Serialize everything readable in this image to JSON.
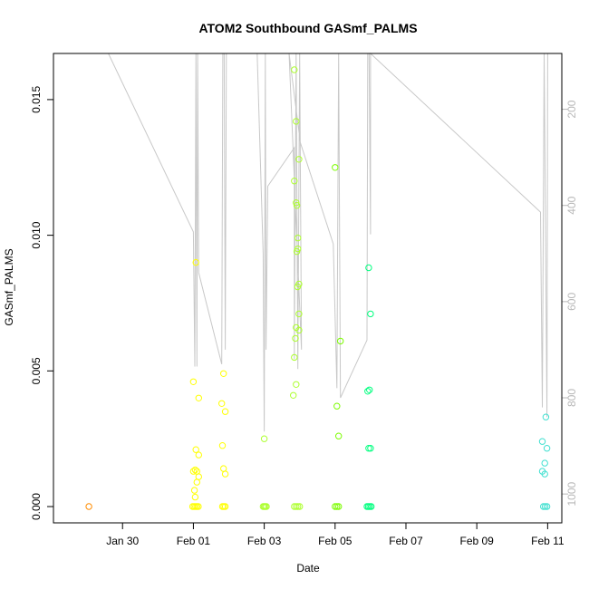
{
  "chart_data": {
    "type": "scatter",
    "title": "ATOM2 Southbound GASmf_PALMS",
    "xlabel": "Date",
    "ylabel": "GASmf_PALMS",
    "x_ticks": [
      {
        "value": 1.0,
        "label": "Jan 30"
      },
      {
        "value": 3.0,
        "label": "Feb 01"
      },
      {
        "value": 5.0,
        "label": "Feb 03"
      },
      {
        "value": 7.0,
        "label": "Feb 05"
      },
      {
        "value": 9.0,
        "label": "Feb 07"
      },
      {
        "value": 11.0,
        "label": "Feb 09"
      },
      {
        "value": 13.0,
        "label": "Feb 11"
      }
    ],
    "y_ticks": [
      {
        "value": 0.0,
        "label": "0.000"
      },
      {
        "value": 0.005,
        "label": "0.005"
      },
      {
        "value": 0.01,
        "label": "0.010"
      },
      {
        "value": 0.015,
        "label": "0.015"
      }
    ],
    "y2_ticks": [
      {
        "value": 200,
        "label": "200"
      },
      {
        "value": 400,
        "label": "400"
      },
      {
        "value": 600,
        "label": "600"
      },
      {
        "value": 800,
        "label": "800"
      },
      {
        "value": 1000,
        "label": "1000"
      }
    ],
    "xlim": [
      -0.95,
      13.4
    ],
    "ylim": [
      -0.0006,
      0.0167
    ],
    "y2lim": [
      1060,
      84
    ],
    "y2_reversed": true,
    "grid": false,
    "point_colors": [
      "#ff8c00",
      "#ffff00",
      "#adff2f",
      "#7cfc00",
      "#00ff7f",
      "#40e0d0"
    ],
    "line_color": "#c8c8c8",
    "points": [
      {
        "x": 0.05,
        "y": 0.0,
        "c": 0
      },
      {
        "x": 3.0,
        "y": 0.0046,
        "c": 1
      },
      {
        "x": 3.0,
        "y": 0.0013,
        "c": 1
      },
      {
        "x": 3.05,
        "y": 0.00135,
        "c": 1
      },
      {
        "x": 3.03,
        "y": 0.0006,
        "c": 1
      },
      {
        "x": 3.07,
        "y": 0.0021,
        "c": 1
      },
      {
        "x": 3.1,
        "y": 0.0009,
        "c": 1
      },
      {
        "x": 3.1,
        "y": 0.0013,
        "c": 1
      },
      {
        "x": 3.15,
        "y": 0.0011,
        "c": 1
      },
      {
        "x": 3.15,
        "y": 0.0019,
        "c": 1
      },
      {
        "x": 3.05,
        "y": 0.00035,
        "c": 1
      },
      {
        "x": 3.15,
        "y": 0.004,
        "c": 1
      },
      {
        "x": 3.07,
        "y": 0.009,
        "c": 1
      },
      {
        "x": 2.98,
        "y": 0.0,
        "c": 1
      },
      {
        "x": 3.02,
        "y": 0.0,
        "c": 1
      },
      {
        "x": 3.06,
        "y": 0.0,
        "c": 1
      },
      {
        "x": 3.1,
        "y": 0.0,
        "c": 1
      },
      {
        "x": 3.14,
        "y": 0.0,
        "c": 1
      },
      {
        "x": 3.85,
        "y": 0.0049,
        "c": 1
      },
      {
        "x": 3.8,
        "y": 0.0038,
        "c": 1
      },
      {
        "x": 3.9,
        "y": 0.0035,
        "c": 1
      },
      {
        "x": 3.82,
        "y": 0.00225,
        "c": 1
      },
      {
        "x": 3.85,
        "y": 0.0014,
        "c": 1
      },
      {
        "x": 3.9,
        "y": 0.0012,
        "c": 1
      },
      {
        "x": 3.82,
        "y": 0.0,
        "c": 1
      },
      {
        "x": 3.86,
        "y": 0.0,
        "c": 1
      },
      {
        "x": 3.9,
        "y": 0.0,
        "c": 1
      },
      {
        "x": 5.0,
        "y": 0.0025,
        "c": 2
      },
      {
        "x": 4.97,
        "y": 0.0,
        "c": 2
      },
      {
        "x": 5.0,
        "y": 0.0,
        "c": 2
      },
      {
        "x": 5.03,
        "y": 0.0,
        "c": 2
      },
      {
        "x": 5.06,
        "y": 0.0,
        "c": 2
      },
      {
        "x": 5.85,
        "y": 0.0161,
        "c": 2
      },
      {
        "x": 5.9,
        "y": 0.0142,
        "c": 2
      },
      {
        "x": 5.98,
        "y": 0.0128,
        "c": 2
      },
      {
        "x": 5.85,
        "y": 0.012,
        "c": 2
      },
      {
        "x": 5.9,
        "y": 0.0112,
        "c": 2
      },
      {
        "x": 5.92,
        "y": 0.0111,
        "c": 2
      },
      {
        "x": 5.95,
        "y": 0.0099,
        "c": 2
      },
      {
        "x": 5.92,
        "y": 0.0094,
        "c": 2
      },
      {
        "x": 5.95,
        "y": 0.0095,
        "c": 2
      },
      {
        "x": 5.98,
        "y": 0.0082,
        "c": 2
      },
      {
        "x": 5.94,
        "y": 0.0081,
        "c": 2
      },
      {
        "x": 5.98,
        "y": 0.0071,
        "c": 2
      },
      {
        "x": 5.9,
        "y": 0.0066,
        "c": 2
      },
      {
        "x": 5.98,
        "y": 0.0065,
        "c": 2
      },
      {
        "x": 5.88,
        "y": 0.0062,
        "c": 2
      },
      {
        "x": 5.85,
        "y": 0.0055,
        "c": 2
      },
      {
        "x": 5.9,
        "y": 0.0045,
        "c": 2
      },
      {
        "x": 5.82,
        "y": 0.0041,
        "c": 2
      },
      {
        "x": 5.85,
        "y": 0.0,
        "c": 2
      },
      {
        "x": 5.9,
        "y": 0.0,
        "c": 2
      },
      {
        "x": 5.95,
        "y": 0.0,
        "c": 2
      },
      {
        "x": 6.0,
        "y": 0.0,
        "c": 2
      },
      {
        "x": 7.0,
        "y": 0.0125,
        "c": 3
      },
      {
        "x": 7.05,
        "y": 0.0037,
        "c": 3
      },
      {
        "x": 7.1,
        "y": 0.0026,
        "c": 3
      },
      {
        "x": 7.15,
        "y": 0.0061,
        "c": 3
      },
      {
        "x": 7.0,
        "y": 0.0,
        "c": 3
      },
      {
        "x": 7.05,
        "y": 0.0,
        "c": 3
      },
      {
        "x": 7.1,
        "y": 0.0,
        "c": 3
      },
      {
        "x": 7.95,
        "y": 0.0088,
        "c": 4
      },
      {
        "x": 8.0,
        "y": 0.0071,
        "c": 4
      },
      {
        "x": 7.92,
        "y": 0.00425,
        "c": 4
      },
      {
        "x": 7.97,
        "y": 0.0043,
        "c": 4
      },
      {
        "x": 7.95,
        "y": 0.00215,
        "c": 4
      },
      {
        "x": 8.0,
        "y": 0.00215,
        "c": 4
      },
      {
        "x": 7.9,
        "y": 0.0,
        "c": 4
      },
      {
        "x": 7.94,
        "y": 0.0,
        "c": 4
      },
      {
        "x": 7.98,
        "y": 0.0,
        "c": 4
      },
      {
        "x": 8.02,
        "y": 0.0,
        "c": 4
      },
      {
        "x": 12.95,
        "y": 0.0033,
        "c": 5
      },
      {
        "x": 12.85,
        "y": 0.0024,
        "c": 5
      },
      {
        "x": 12.98,
        "y": 0.00215,
        "c": 5
      },
      {
        "x": 12.92,
        "y": 0.0016,
        "c": 5
      },
      {
        "x": 12.85,
        "y": 0.0013,
        "c": 5
      },
      {
        "x": 12.92,
        "y": 0.0012,
        "c": 5
      },
      {
        "x": 12.88,
        "y": 0.0,
        "c": 5
      },
      {
        "x": 12.93,
        "y": 0.0,
        "c": 5
      },
      {
        "x": 12.98,
        "y": 0.0,
        "c": 5
      }
    ],
    "pressure_line": [
      [
        0.6,
        84
      ],
      [
        3.0,
        455
      ],
      [
        3.04,
        735
      ],
      [
        3.07,
        84
      ],
      [
        3.1,
        735
      ],
      [
        3.12,
        84
      ],
      [
        3.15,
        540
      ],
      [
        3.8,
        730
      ],
      [
        3.83,
        84
      ],
      [
        3.87,
        84
      ],
      [
        3.9,
        700
      ],
      [
        3.93,
        84
      ],
      [
        4.8,
        84
      ],
      [
        4.97,
        500
      ],
      [
        5.0,
        870
      ],
      [
        5.03,
        84
      ],
      [
        5.05,
        700
      ],
      [
        5.1,
        360
      ],
      [
        5.85,
        280
      ],
      [
        5.85,
        720
      ],
      [
        5.9,
        84
      ],
      [
        5.95,
        740
      ],
      [
        6.0,
        84
      ],
      [
        6.05,
        700
      ],
      [
        5.7,
        84
      ],
      [
        6.02,
        270
      ],
      [
        6.95,
        480
      ],
      [
        7.05,
        780
      ],
      [
        7.1,
        84
      ],
      [
        7.15,
        800
      ],
      [
        7.9,
        680
      ],
      [
        7.92,
        84
      ],
      [
        7.96,
        84
      ],
      [
        8.0,
        460
      ],
      [
        8.0,
        84
      ],
      [
        12.8,
        414
      ],
      [
        12.85,
        820
      ],
      [
        12.9,
        84
      ],
      [
        12.98,
        840
      ],
      [
        13.0,
        84
      ],
      [
        13.02,
        84
      ]
    ]
  }
}
